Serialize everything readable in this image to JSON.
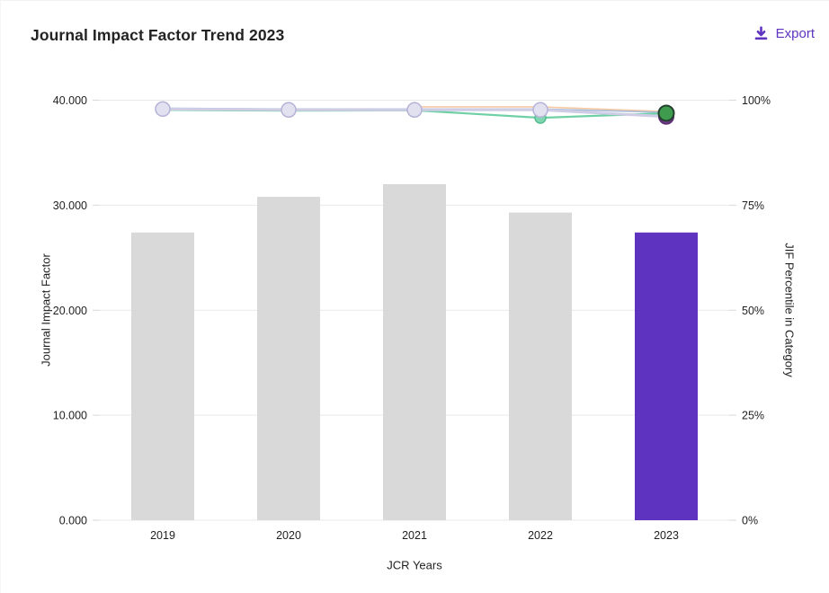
{
  "header": {
    "title": "Journal Impact Factor Trend 2023",
    "export": {
      "label": "Export",
      "icon": "download-icon",
      "color": "#5e33bf"
    }
  },
  "chart_data": {
    "type": "combo-bar-line",
    "title": "Journal Impact Factor Trend 2023",
    "categories": [
      "2019",
      "2020",
      "2021",
      "2022",
      "2023"
    ],
    "x_axis": {
      "label": "JCR Years"
    },
    "left_axis": {
      "label": "Journal Impact Factor",
      "min": 0,
      "max": 40,
      "ticks": [
        "40.000",
        "30.000",
        "20.000",
        "10.000",
        "0.000"
      ]
    },
    "right_axis": {
      "label": "JIF Percentile in Category",
      "min": 0,
      "max": 100,
      "ticks": [
        "100%",
        "75%",
        "50%",
        "25%",
        "0%"
      ]
    },
    "grid": true,
    "grid_color": "#e9e9e9",
    "tick_color": "#d9d9d9",
    "text_color": "#1f1f1f",
    "bars": {
      "series_name": "Journal Impact Factor",
      "values": [
        27.4,
        30.8,
        32.0,
        29.3,
        27.4
      ],
      "default_color": "#d9d9d9",
      "highlight_color": "#5e33bf",
      "highlight_index": 4
    },
    "lines": [
      {
        "name": "percentile-series-1",
        "color": "#f6c9a3",
        "width": 1.6,
        "values": [
          null,
          null,
          98.4,
          98.4,
          97.3
        ]
      },
      {
        "name": "percentile-series-2",
        "color": "#a9bcd8",
        "width": 1.6,
        "values": [
          98.1,
          97.9,
          97.9,
          97.9,
          97.1
        ]
      },
      {
        "name": "percentile-series-3",
        "color": "#6fcfa5",
        "width": 2.2,
        "values": [
          97.7,
          97.5,
          97.6,
          95.8,
          96.9
        ],
        "marker": {
          "r": 6,
          "fill": "#7fd6b0",
          "stroke": "#57bd92"
        },
        "end_marker": {
          "r": 8.5,
          "fill": "#3f9b4e",
          "stroke": "#25402e"
        }
      },
      {
        "name": "percentile-series-4",
        "color": "#cfcde6",
        "width": 3,
        "values": [
          97.9,
          97.7,
          97.7,
          97.7,
          96.1
        ],
        "marker": {
          "r": 8,
          "fill": "#e2e1f0",
          "stroke": "#b5b2d6"
        },
        "end_marker": {
          "r": 8,
          "fill": "#7d3f98",
          "stroke": "#5e2f75"
        }
      }
    ]
  }
}
